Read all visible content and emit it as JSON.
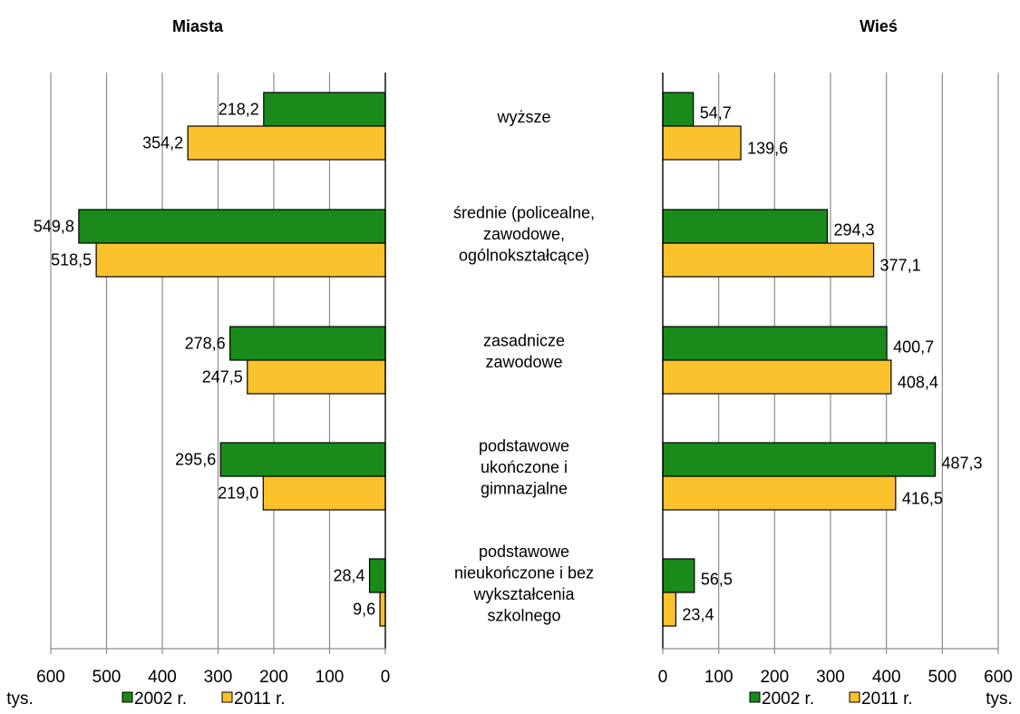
{
  "chart_data": {
    "type": "bar",
    "orientation": "horizontal",
    "unit_label": "tys.",
    "categories": [
      [
        "wyższe"
      ],
      [
        "średnie (policealne,",
        "zawodowe,",
        "ogólnokształcące)"
      ],
      [
        "zasadnicze",
        "zawodowe"
      ],
      [
        "podstawowe",
        "ukończone i",
        "gimnazjalne"
      ],
      [
        "podstawowe",
        "nieukończone i bez",
        "wykształcenia",
        "szkolnego"
      ]
    ],
    "legend": [
      {
        "name": "2002 r.",
        "color": "#1a8a1a"
      },
      {
        "name": "2011 r.",
        "color": "#fcc22d"
      }
    ],
    "panels": [
      {
        "title": "Miasta",
        "direction": "reversed",
        "xlim": [
          0,
          600
        ],
        "ticks": [
          "0",
          "100",
          "200",
          "300",
          "400",
          "500",
          "600"
        ],
        "series": [
          {
            "name": "2002 r.",
            "values": [
              218.2,
              549.8,
              278.6,
              295.6,
              28.4
            ],
            "labels": [
              "218,2",
              "549,8",
              "278,6",
              "295,6",
              "28,4"
            ]
          },
          {
            "name": "2011 r.",
            "values": [
              354.2,
              518.5,
              247.5,
              219.0,
              9.6
            ],
            "labels": [
              "354,2",
              "518,5",
              "247,5",
              "219,0",
              "9,6"
            ]
          }
        ]
      },
      {
        "title": "Wieś",
        "direction": "normal",
        "xlim": [
          0,
          600
        ],
        "ticks": [
          "0",
          "100",
          "200",
          "300",
          "400",
          "500",
          "600"
        ],
        "series": [
          {
            "name": "2002 r.",
            "values": [
              54.7,
              294.3,
              400.7,
              487.3,
              56.5
            ],
            "labels": [
              "54,7",
              "294,3",
              "400,7",
              "487,3",
              "56,5"
            ]
          },
          {
            "name": "2011 r.",
            "values": [
              139.6,
              377.1,
              408.4,
              416.5,
              23.4
            ],
            "labels": [
              "139,6",
              "377,1",
              "408,4",
              "416,5",
              "23,4"
            ]
          }
        ]
      }
    ],
    "grid": true
  }
}
